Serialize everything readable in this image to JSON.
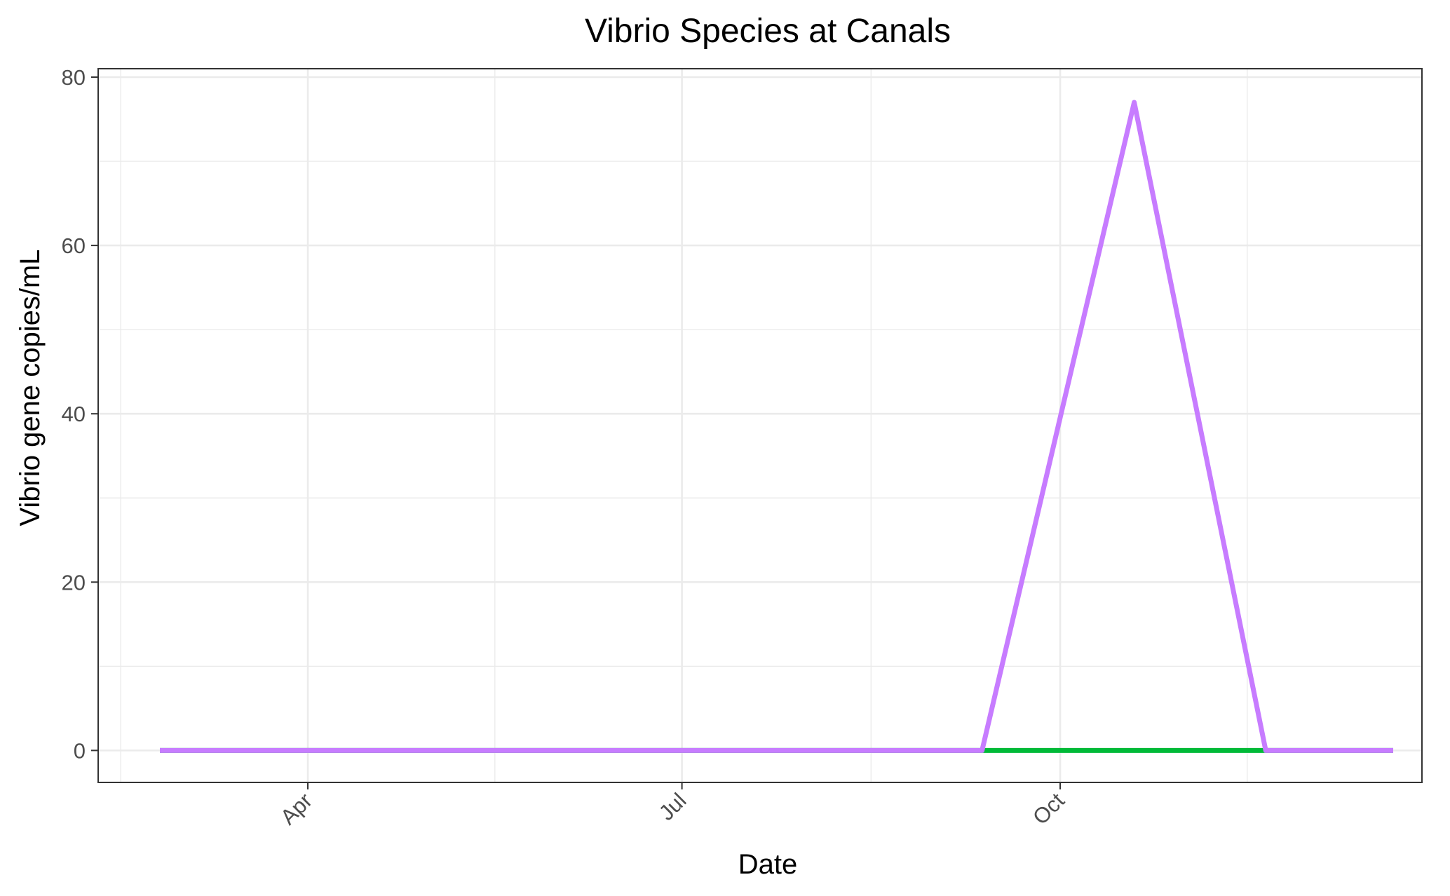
{
  "chart_data": {
    "type": "line",
    "title": "Vibrio Species at Canals",
    "xlabel": "Date",
    "ylabel": "Vibrio gene copies/mL",
    "x_tick_labels": [
      {
        "date": "2020-04-01",
        "label": "Apr"
      },
      {
        "date": "2020-07-01",
        "label": "Jul"
      },
      {
        "date": "2020-10-01",
        "label": "Oct"
      }
    ],
    "y_ticks": [
      0,
      20,
      40,
      60,
      80
    ],
    "xlim": [
      "2020-02-10",
      "2020-12-28"
    ],
    "ylim": [
      -3.8,
      81
    ],
    "grid": true,
    "legend": "none",
    "series": [
      {
        "color": "#00BA38",
        "x": [
          "2020-02-25",
          "2020-09-12",
          "2020-10-19",
          "2020-11-20",
          "2020-12-21"
        ],
        "y": [
          0,
          0,
          0,
          0,
          0
        ]
      },
      {
        "color": "#C77CFF",
        "x": [
          "2020-02-25",
          "2020-09-12",
          "2020-10-19",
          "2020-11-20",
          "2020-12-21"
        ],
        "y": [
          0,
          0,
          77,
          0,
          0
        ]
      }
    ]
  }
}
